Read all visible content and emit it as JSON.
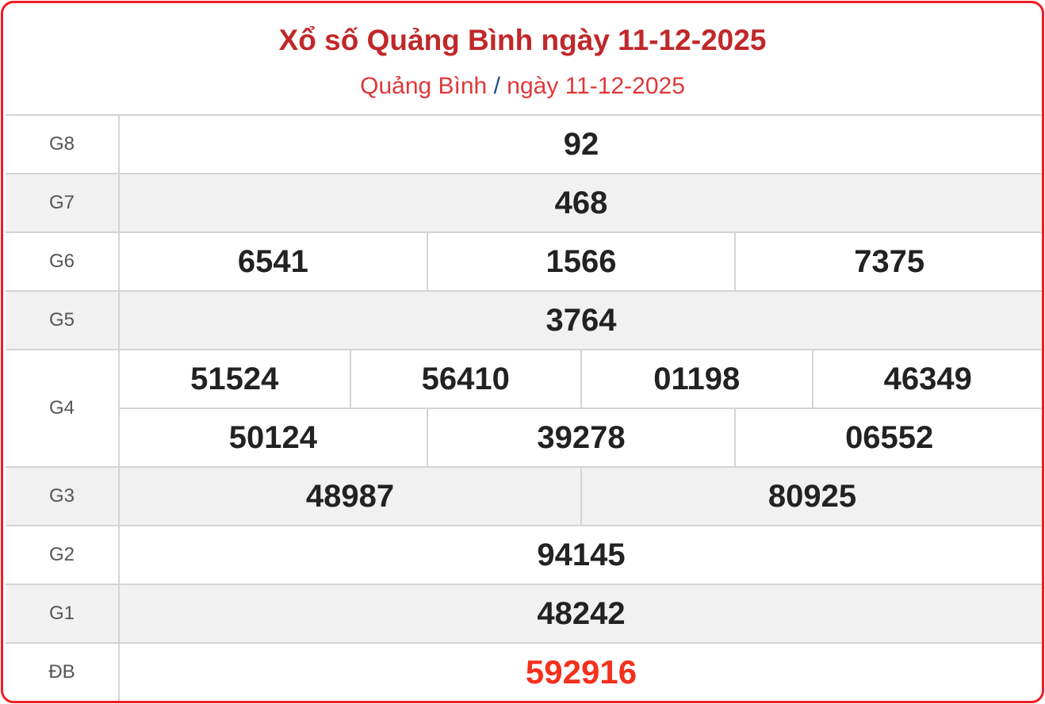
{
  "header": {
    "title": "Xổ số Quảng Bình ngày 11-12-2025",
    "breadcrumb_province": "Quảng Bình",
    "breadcrumb_sep": "/",
    "breadcrumb_date": "ngày 11-12-2025"
  },
  "colors": {
    "border": "#ee1c25",
    "title": "#c0282a",
    "special": "#f4301c"
  },
  "prizes": [
    {
      "label": "G8",
      "rows": [
        [
          "92"
        ]
      ]
    },
    {
      "label": "G7",
      "rows": [
        [
          "468"
        ]
      ]
    },
    {
      "label": "G6",
      "rows": [
        [
          "6541",
          "1566",
          "7375"
        ]
      ]
    },
    {
      "label": "G5",
      "rows": [
        [
          "3764"
        ]
      ]
    },
    {
      "label": "G4",
      "rows": [
        [
          "51524",
          "56410",
          "01198",
          "46349"
        ],
        [
          "50124",
          "39278",
          "06552"
        ]
      ]
    },
    {
      "label": "G3",
      "rows": [
        [
          "48987",
          "80925"
        ]
      ]
    },
    {
      "label": "G2",
      "rows": [
        [
          "94145"
        ]
      ]
    },
    {
      "label": "G1",
      "rows": [
        [
          "48242"
        ]
      ]
    },
    {
      "label": "ĐB",
      "rows": [
        [
          "592916"
        ]
      ]
    }
  ]
}
